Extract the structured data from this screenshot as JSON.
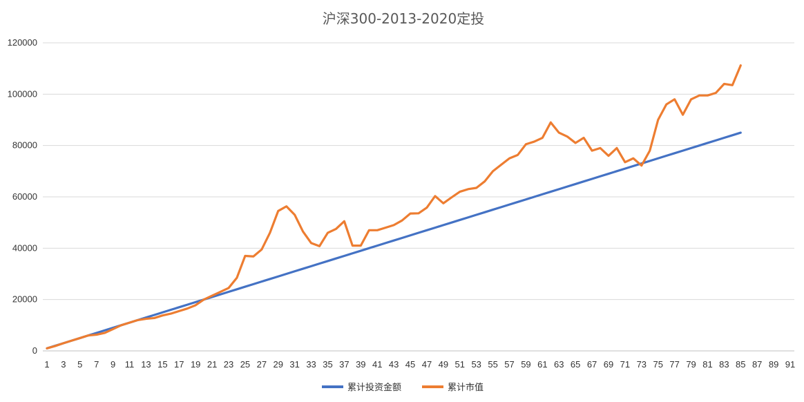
{
  "chart_data": {
    "type": "line",
    "title": "沪深300-2013-2020定投",
    "xlabel": "",
    "ylabel": "",
    "ylim": [
      0,
      120000
    ],
    "y_ticks": [
      0,
      20000,
      40000,
      60000,
      80000,
      100000,
      120000
    ],
    "x_range": [
      1,
      91
    ],
    "x_tick_labels": [
      "1",
      "3",
      "5",
      "7",
      "9",
      "11",
      "13",
      "15",
      "17",
      "19",
      "21",
      "23",
      "25",
      "27",
      "29",
      "31",
      "33",
      "35",
      "37",
      "39",
      "41",
      "43",
      "45",
      "47",
      "49",
      "51",
      "53",
      "55",
      "57",
      "59",
      "61",
      "63",
      "65",
      "67",
      "69",
      "71",
      "73",
      "75",
      "77",
      "79",
      "81",
      "83",
      "85",
      "87",
      "89",
      "91"
    ],
    "grid": true,
    "legend_position": "bottom",
    "series": [
      {
        "name": "累计投资金额",
        "color": "#4472c4",
        "values": [
          1000,
          2000,
          3000,
          4000,
          5000,
          6000,
          7000,
          8000,
          9000,
          10000,
          11000,
          12000,
          13000,
          14000,
          15000,
          16000,
          17000,
          18000,
          19000,
          20000,
          21000,
          22000,
          23000,
          24000,
          25000,
          26000,
          27000,
          28000,
          29000,
          30000,
          31000,
          32000,
          33000,
          34000,
          35000,
          36000,
          37000,
          38000,
          39000,
          40000,
          41000,
          42000,
          43000,
          44000,
          45000,
          46000,
          47000,
          48000,
          49000,
          50000,
          51000,
          52000,
          53000,
          54000,
          55000,
          56000,
          57000,
          58000,
          59000,
          60000,
          61000,
          62000,
          63000,
          64000,
          65000,
          66000,
          67000,
          68000,
          69000,
          70000,
          71000,
          72000,
          73000,
          74000,
          75000,
          76000,
          77000,
          78000,
          79000,
          80000,
          81000,
          82000,
          83000,
          84000,
          85000
        ]
      },
      {
        "name": "累计市值",
        "color": "#ed7d31",
        "values": [
          1000,
          1900,
          3000,
          4000,
          5000,
          6000,
          6300,
          7000,
          8500,
          10000,
          11000,
          12000,
          12500,
          12800,
          13800,
          14500,
          15500,
          16500,
          17800,
          20000,
          21500,
          23000,
          24500,
          28500,
          37000,
          36800,
          39500,
          46000,
          54500,
          56300,
          53000,
          46500,
          42000,
          40800,
          46000,
          47500,
          50500,
          41000,
          41000,
          47000,
          47000,
          48000,
          49000,
          50800,
          53500,
          53600,
          55800,
          60300,
          57500,
          59800,
          62000,
          63000,
          63500,
          66000,
          70000,
          72500,
          75000,
          76300,
          80500,
          81500,
          83000,
          89000,
          85000,
          83500,
          81000,
          83000,
          78000,
          79000,
          76000,
          79000,
          73500,
          75000,
          72200,
          78000,
          90000,
          96000,
          98000,
          92000,
          98000,
          99500,
          99500,
          100500,
          104000,
          103500,
          111200
        ]
      }
    ]
  }
}
